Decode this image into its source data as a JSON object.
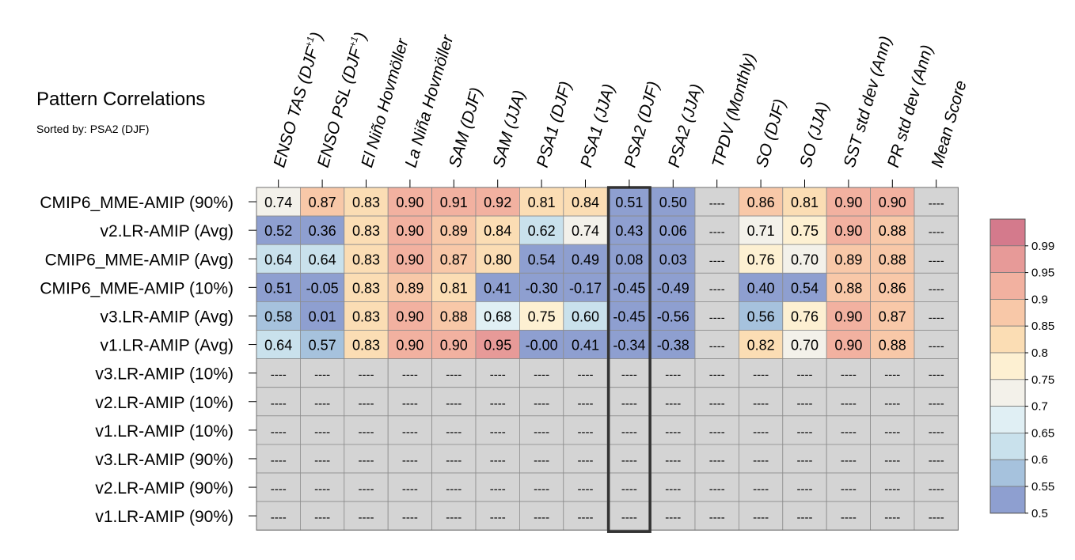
{
  "chart_data": {
    "type": "heatmap",
    "title": "Pattern Correlations",
    "subtitle": "Sorted by: PSA2 (DJF)",
    "columns": [
      {
        "base": "ENSO TAS (DJF",
        "sup": "+1",
        "close": ")"
      },
      {
        "base": "ENSO PSL (DJF",
        "sup": "+1",
        "close": ")"
      },
      {
        "base": "El Niño Hovmöller",
        "sup": "",
        "close": ""
      },
      {
        "base": "La Niña Hovmöller",
        "sup": "",
        "close": ""
      },
      {
        "base": "SAM (DJF)",
        "sup": "",
        "close": ""
      },
      {
        "base": "SAM (JJA)",
        "sup": "",
        "close": ""
      },
      {
        "base": "PSA1 (DJF)",
        "sup": "",
        "close": ""
      },
      {
        "base": "PSA1 (JJA)",
        "sup": "",
        "close": ""
      },
      {
        "base": "PSA2 (DJF)",
        "sup": "",
        "close": ""
      },
      {
        "base": "PSA2 (JJA)",
        "sup": "",
        "close": ""
      },
      {
        "base": "TPDV (Monthly)",
        "sup": "",
        "close": ""
      },
      {
        "base": "SO (DJF)",
        "sup": "",
        "close": ""
      },
      {
        "base": "SO (JJA)",
        "sup": "",
        "close": ""
      },
      {
        "base": "SST std dev (Ann)",
        "sup": "",
        "close": ""
      },
      {
        "base": "PR std dev (Ann)",
        "sup": "",
        "close": ""
      },
      {
        "base": "Mean Score",
        "sup": "",
        "close": ""
      }
    ],
    "rows": [
      "CMIP6_MME-AMIP (90%)",
      "v2.LR-AMIP (Avg)",
      "CMIP6_MME-AMIP (Avg)",
      "CMIP6_MME-AMIP (10%)",
      "v3.LR-AMIP (Avg)",
      "v1.LR-AMIP (Avg)",
      "v3.LR-AMIP (10%)",
      "v2.LR-AMIP (10%)",
      "v1.LR-AMIP (10%)",
      "v3.LR-AMIP (90%)",
      "v2.LR-AMIP (90%)",
      "v1.LR-AMIP (90%)"
    ],
    "values": [
      [
        0.74,
        0.87,
        0.83,
        0.9,
        0.91,
        0.92,
        0.81,
        0.84,
        0.51,
        0.5,
        null,
        0.86,
        0.81,
        0.9,
        0.9,
        null
      ],
      [
        0.52,
        0.36,
        0.83,
        0.9,
        0.89,
        0.84,
        0.62,
        0.74,
        0.43,
        0.06,
        null,
        0.71,
        0.75,
        0.9,
        0.88,
        null
      ],
      [
        0.64,
        0.64,
        0.83,
        0.9,
        0.87,
        0.8,
        0.54,
        0.49,
        0.08,
        0.03,
        null,
        0.76,
        0.7,
        0.89,
        0.88,
        null
      ],
      [
        0.51,
        -0.05,
        0.83,
        0.89,
        0.81,
        0.41,
        -0.3,
        -0.17,
        -0.45,
        -0.49,
        null,
        0.4,
        0.54,
        0.88,
        0.86,
        null
      ],
      [
        0.58,
        0.01,
        0.83,
        0.9,
        0.88,
        0.68,
        0.75,
        0.6,
        -0.45,
        -0.56,
        null,
        0.56,
        0.76,
        0.9,
        0.87,
        null
      ],
      [
        0.64,
        0.57,
        0.83,
        0.9,
        0.9,
        0.95,
        -0.0,
        0.41,
        -0.34,
        -0.38,
        null,
        0.82,
        0.7,
        0.9,
        0.88,
        null
      ],
      [
        null,
        null,
        null,
        null,
        null,
        null,
        null,
        null,
        null,
        null,
        null,
        null,
        null,
        null,
        null,
        null
      ],
      [
        null,
        null,
        null,
        null,
        null,
        null,
        null,
        null,
        null,
        null,
        null,
        null,
        null,
        null,
        null,
        null
      ],
      [
        null,
        null,
        null,
        null,
        null,
        null,
        null,
        null,
        null,
        null,
        null,
        null,
        null,
        null,
        null,
        null
      ],
      [
        null,
        null,
        null,
        null,
        null,
        null,
        null,
        null,
        null,
        null,
        null,
        null,
        null,
        null,
        null,
        null
      ],
      [
        null,
        null,
        null,
        null,
        null,
        null,
        null,
        null,
        null,
        null,
        null,
        null,
        null,
        null,
        null,
        null
      ],
      [
        null,
        null,
        null,
        null,
        null,
        null,
        null,
        null,
        null,
        null,
        null,
        null,
        null,
        null,
        null,
        null
      ]
    ],
    "missing_label": "----",
    "highlight_column": "PSA2 (DJF)",
    "colorbar": {
      "ticks": [
        "0.99",
        "0.95",
        "0.9",
        "0.85",
        "0.8",
        "0.75",
        "0.7",
        "0.65",
        "0.6",
        "0.55",
        "0.5"
      ],
      "colors": [
        "#d47a8c",
        "#e79a98",
        "#f2b1a0",
        "#f8c8a8",
        "#fbddb4",
        "#fdf0d2",
        "#f3f1ea",
        "#e0eff4",
        "#c9e1ec",
        "#a6c2dd",
        "#8e9fd0"
      ],
      "missing_color": "#d4d4d4"
    }
  }
}
